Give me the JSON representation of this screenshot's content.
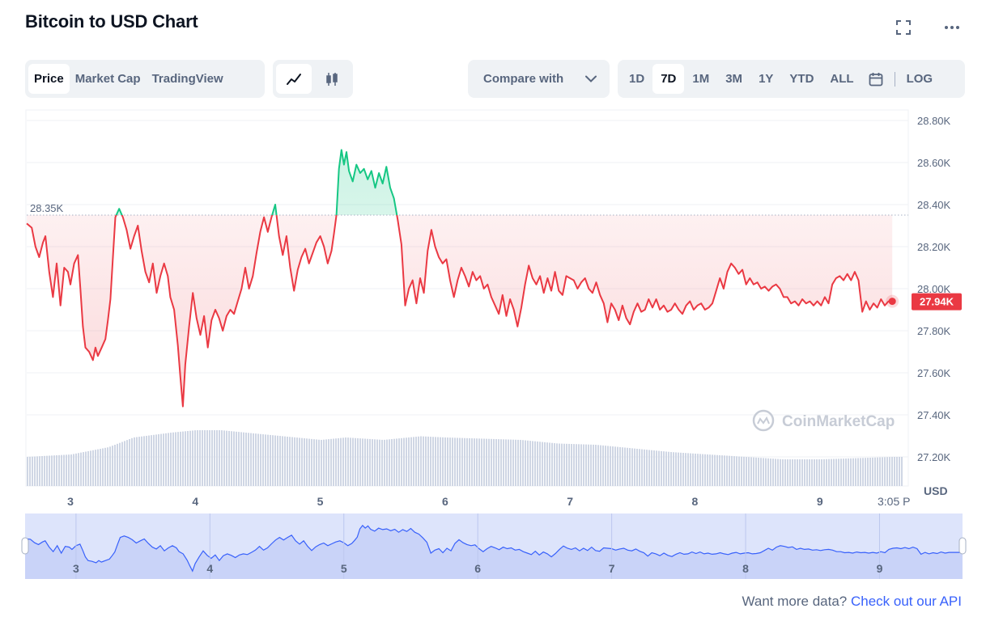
{
  "header": {
    "title": "Bitcoin to USD Chart",
    "fullscreen_icon": "fullscreen-icon",
    "more_icon": "more-horizontal-icon"
  },
  "toolbar": {
    "type_tabs": [
      "Price",
      "Market Cap",
      "TradingView"
    ],
    "type_active": "Price",
    "chart_modes": [
      "line-chart-icon",
      "candlestick-icon"
    ],
    "chart_mode_active": "line-chart-icon",
    "compare_label": "Compare with",
    "compare_icon": "chevron-down-icon",
    "ranges": [
      "1D",
      "7D",
      "1M",
      "3M",
      "1Y",
      "YTD",
      "ALL"
    ],
    "range_active": "7D",
    "calendar_icon": "calendar-icon",
    "log_label": "LOG"
  },
  "chart_data": {
    "type": "line",
    "title": "Bitcoin to USD Chart",
    "ylabel": "USD",
    "ylim": [
      27120,
      28850
    ],
    "yticks": [
      27200,
      27400,
      27600,
      27800,
      28000,
      28200,
      28400,
      28600,
      28800
    ],
    "ytick_labels": [
      "27.20K",
      "27.40K",
      "27.60K",
      "27.80K",
      "28.00K",
      "28.20K",
      "28.40K",
      "28.60K",
      "28.80K"
    ],
    "xlim": [
      2.65,
      9.65
    ],
    "xticks": [
      3,
      4,
      5,
      6,
      7,
      8,
      9
    ],
    "xtick_labels": [
      "3",
      "4",
      "5",
      "6",
      "7",
      "8",
      "9"
    ],
    "last_time_label": "3:05 P",
    "baseline": {
      "value": 28350,
      "label": "28.35K"
    },
    "current": {
      "value": 27940,
      "label": "27.94K"
    },
    "colors": {
      "up": "#16c784",
      "down": "#ea3943",
      "volume": "#cfd6e4",
      "navigator": "#3861fb"
    },
    "series": [
      {
        "values": [
          [
            2.65,
            28310
          ],
          [
            2.69,
            28290
          ],
          [
            2.72,
            28200
          ],
          [
            2.75,
            28150
          ],
          [
            2.78,
            28220
          ],
          [
            2.8,
            28250
          ],
          [
            2.83,
            28080
          ],
          [
            2.86,
            27960
          ],
          [
            2.89,
            28120
          ],
          [
            2.92,
            27920
          ],
          [
            2.95,
            28100
          ],
          [
            2.98,
            28080
          ],
          [
            3.0,
            28020
          ],
          [
            3.03,
            28120
          ],
          [
            3.06,
            28160
          ],
          [
            3.08,
            28000
          ],
          [
            3.1,
            27820
          ],
          [
            3.12,
            27720
          ],
          [
            3.15,
            27700
          ],
          [
            3.18,
            27660
          ],
          [
            3.2,
            27720
          ],
          [
            3.22,
            27680
          ],
          [
            3.25,
            27720
          ],
          [
            3.28,
            27760
          ],
          [
            3.3,
            27850
          ],
          [
            3.32,
            27950
          ],
          [
            3.34,
            28150
          ],
          [
            3.36,
            28340
          ],
          [
            3.39,
            28380
          ],
          [
            3.42,
            28340
          ],
          [
            3.45,
            28280
          ],
          [
            3.48,
            28190
          ],
          [
            3.51,
            28250
          ],
          [
            3.54,
            28300
          ],
          [
            3.57,
            28180
          ],
          [
            3.6,
            28080
          ],
          [
            3.63,
            28030
          ],
          [
            3.66,
            28120
          ],
          [
            3.69,
            27980
          ],
          [
            3.72,
            28060
          ],
          [
            3.75,
            28120
          ],
          [
            3.78,
            28060
          ],
          [
            3.8,
            27960
          ],
          [
            3.83,
            27900
          ],
          [
            3.86,
            27730
          ],
          [
            3.88,
            27580
          ],
          [
            3.9,
            27440
          ],
          [
            3.92,
            27640
          ],
          [
            3.95,
            27820
          ],
          [
            3.98,
            27980
          ],
          [
            4.01,
            27860
          ],
          [
            4.04,
            27780
          ],
          [
            4.07,
            27870
          ],
          [
            4.1,
            27720
          ],
          [
            4.13,
            27850
          ],
          [
            4.16,
            27900
          ],
          [
            4.19,
            27860
          ],
          [
            4.22,
            27800
          ],
          [
            4.25,
            27870
          ],
          [
            4.28,
            27900
          ],
          [
            4.31,
            27880
          ],
          [
            4.34,
            27940
          ],
          [
            4.37,
            28000
          ],
          [
            4.4,
            28100
          ],
          [
            4.43,
            28000
          ],
          [
            4.46,
            28060
          ],
          [
            4.49,
            28170
          ],
          [
            4.52,
            28270
          ],
          [
            4.55,
            28340
          ],
          [
            4.58,
            28270
          ],
          [
            4.61,
            28340
          ],
          [
            4.64,
            28400
          ],
          [
            4.67,
            28250
          ],
          [
            4.7,
            28160
          ],
          [
            4.73,
            28250
          ],
          [
            4.76,
            28100
          ],
          [
            4.79,
            27990
          ],
          [
            4.82,
            28090
          ],
          [
            4.85,
            28150
          ],
          [
            4.88,
            28190
          ],
          [
            4.91,
            28120
          ],
          [
            4.94,
            28170
          ],
          [
            4.97,
            28220
          ],
          [
            5.0,
            28250
          ],
          [
            5.03,
            28200
          ],
          [
            5.06,
            28120
          ],
          [
            5.09,
            28180
          ],
          [
            5.11,
            28260
          ],
          [
            5.13,
            28350
          ],
          [
            5.15,
            28570
          ],
          [
            5.17,
            28660
          ],
          [
            5.19,
            28590
          ],
          [
            5.21,
            28650
          ],
          [
            5.23,
            28560
          ],
          [
            5.26,
            28510
          ],
          [
            5.29,
            28590
          ],
          [
            5.32,
            28550
          ],
          [
            5.35,
            28570
          ],
          [
            5.38,
            28520
          ],
          [
            5.41,
            28560
          ],
          [
            5.44,
            28480
          ],
          [
            5.47,
            28550
          ],
          [
            5.5,
            28500
          ],
          [
            5.53,
            28580
          ],
          [
            5.56,
            28480
          ],
          [
            5.59,
            28430
          ],
          [
            5.62,
            28330
          ],
          [
            5.65,
            28210
          ],
          [
            5.68,
            27920
          ],
          [
            5.71,
            28000
          ],
          [
            5.74,
            28040
          ],
          [
            5.77,
            27930
          ],
          [
            5.8,
            28050
          ],
          [
            5.83,
            27980
          ],
          [
            5.86,
            28180
          ],
          [
            5.89,
            28280
          ],
          [
            5.92,
            28200
          ],
          [
            5.95,
            28150
          ],
          [
            5.98,
            28120
          ],
          [
            6.01,
            28140
          ],
          [
            6.04,
            28040
          ],
          [
            6.07,
            27960
          ],
          [
            6.1,
            28040
          ],
          [
            6.13,
            28100
          ],
          [
            6.16,
            28060
          ],
          [
            6.19,
            28010
          ],
          [
            6.22,
            28080
          ],
          [
            6.25,
            28040
          ],
          [
            6.28,
            28060
          ],
          [
            6.31,
            28000
          ],
          [
            6.34,
            28020
          ],
          [
            6.37,
            27960
          ],
          [
            6.4,
            27920
          ],
          [
            6.43,
            27880
          ],
          [
            6.46,
            27970
          ],
          [
            6.49,
            27870
          ],
          [
            6.52,
            27950
          ],
          [
            6.55,
            27900
          ],
          [
            6.58,
            27820
          ],
          [
            6.61,
            27910
          ],
          [
            6.64,
            28020
          ],
          [
            6.67,
            28110
          ],
          [
            6.7,
            28050
          ],
          [
            6.73,
            28020
          ],
          [
            6.76,
            28060
          ],
          [
            6.79,
            27980
          ],
          [
            6.82,
            28050
          ],
          [
            6.85,
            27990
          ],
          [
            6.88,
            28080
          ],
          [
            6.91,
            27990
          ],
          [
            6.94,
            27970
          ],
          [
            6.97,
            28060
          ],
          [
            7.0,
            28050
          ],
          [
            7.03,
            28040
          ],
          [
            7.06,
            28000
          ],
          [
            7.09,
            28030
          ],
          [
            7.12,
            28050
          ],
          [
            7.15,
            28000
          ],
          [
            7.18,
            27980
          ],
          [
            7.21,
            28030
          ],
          [
            7.24,
            27970
          ],
          [
            7.27,
            27930
          ],
          [
            7.3,
            27840
          ],
          [
            7.33,
            27930
          ],
          [
            7.36,
            27900
          ],
          [
            7.39,
            27850
          ],
          [
            7.42,
            27920
          ],
          [
            7.45,
            27860
          ],
          [
            7.48,
            27830
          ],
          [
            7.51,
            27890
          ],
          [
            7.54,
            27930
          ],
          [
            7.57,
            27890
          ],
          [
            7.6,
            27900
          ],
          [
            7.63,
            27950
          ],
          [
            7.66,
            27910
          ],
          [
            7.69,
            27950
          ],
          [
            7.72,
            27900
          ],
          [
            7.75,
            27920
          ],
          [
            7.78,
            27890
          ],
          [
            7.81,
            27900
          ],
          [
            7.84,
            27930
          ],
          [
            7.87,
            27900
          ],
          [
            7.9,
            27880
          ],
          [
            7.93,
            27920
          ],
          [
            7.96,
            27940
          ],
          [
            7.99,
            27900
          ],
          [
            8.02,
            27920
          ],
          [
            8.05,
            27930
          ],
          [
            8.08,
            27900
          ],
          [
            8.11,
            27910
          ],
          [
            8.14,
            27930
          ],
          [
            8.17,
            27990
          ],
          [
            8.2,
            28050
          ],
          [
            8.23,
            28000
          ],
          [
            8.26,
            28080
          ],
          [
            8.29,
            28120
          ],
          [
            8.32,
            28100
          ],
          [
            8.35,
            28070
          ],
          [
            8.38,
            28090
          ],
          [
            8.41,
            28020
          ],
          [
            8.44,
            28050
          ],
          [
            8.47,
            28020
          ],
          [
            8.5,
            28030
          ],
          [
            8.53,
            28000
          ],
          [
            8.56,
            28010
          ],
          [
            8.59,
            27990
          ],
          [
            8.62,
            28010
          ],
          [
            8.65,
            28020
          ],
          [
            8.68,
            28000
          ],
          [
            8.71,
            27960
          ],
          [
            8.74,
            27960
          ],
          [
            8.77,
            27930
          ],
          [
            8.8,
            27940
          ],
          [
            8.83,
            27920
          ],
          [
            8.86,
            27950
          ],
          [
            8.89,
            27930
          ],
          [
            8.92,
            27940
          ],
          [
            8.95,
            27920
          ],
          [
            8.98,
            27940
          ],
          [
            9.01,
            27920
          ],
          [
            9.04,
            27960
          ],
          [
            9.07,
            27930
          ],
          [
            9.1,
            28020
          ],
          [
            9.13,
            28050
          ],
          [
            9.16,
            28060
          ],
          [
            9.19,
            28040
          ],
          [
            9.22,
            28070
          ],
          [
            9.25,
            28040
          ],
          [
            9.28,
            28080
          ],
          [
            9.31,
            28040
          ],
          [
            9.34,
            27890
          ],
          [
            9.37,
            27940
          ],
          [
            9.4,
            27900
          ],
          [
            9.43,
            27930
          ],
          [
            9.46,
            27910
          ],
          [
            9.49,
            27950
          ],
          [
            9.52,
            27920
          ],
          [
            9.55,
            27940
          ],
          [
            9.58,
            27940
          ]
        ]
      }
    ],
    "volume_profile": [
      [
        2.65,
        0.24
      ],
      [
        3.0,
        0.26
      ],
      [
        3.3,
        0.32
      ],
      [
        3.5,
        0.4
      ],
      [
        3.8,
        0.44
      ],
      [
        4.0,
        0.46
      ],
      [
        4.2,
        0.46
      ],
      [
        4.5,
        0.43
      ],
      [
        4.8,
        0.4
      ],
      [
        5.0,
        0.38
      ],
      [
        5.2,
        0.4
      ],
      [
        5.5,
        0.38
      ],
      [
        5.8,
        0.41
      ],
      [
        6.0,
        0.4
      ],
      [
        6.3,
        0.39
      ],
      [
        6.6,
        0.38
      ],
      [
        6.9,
        0.35
      ],
      [
        7.2,
        0.34
      ],
      [
        7.5,
        0.31
      ],
      [
        7.8,
        0.28
      ],
      [
        8.1,
        0.26
      ],
      [
        8.4,
        0.24
      ],
      [
        8.7,
        0.22
      ],
      [
        9.0,
        0.22
      ],
      [
        9.3,
        0.23
      ],
      [
        9.58,
        0.24
      ]
    ],
    "navigator_labels": [
      "3",
      "4",
      "5",
      "6",
      "7",
      "8",
      "9"
    ],
    "watermark": "CoinMarketCap"
  },
  "footer": {
    "prefix": "Want more data? ",
    "link": "Check out our API"
  }
}
